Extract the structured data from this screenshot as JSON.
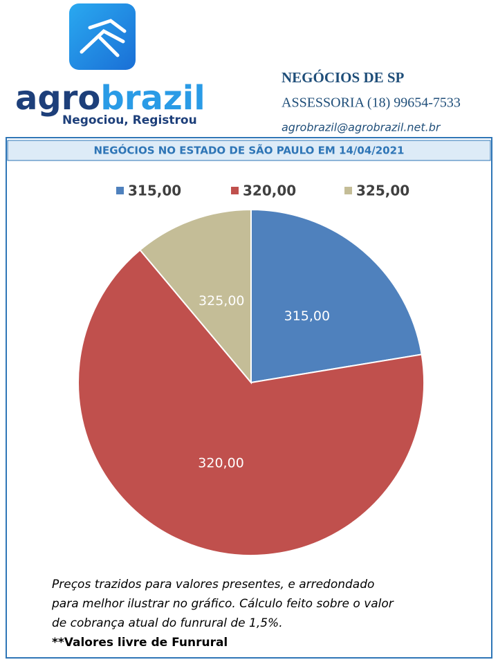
{
  "header": {
    "brand": [
      "agro",
      "brazil"
    ],
    "slogan": "Negociou, Registrou",
    "company": "NEGÓCIOS DE SP",
    "phone": "ASSESSORIA (18) 99654-7533",
    "email": "agrobrazil@agrobrazil.net.br"
  },
  "chart_data": {
    "type": "pie",
    "title": "NEGÓCIOS NO ESTADO DE SÃO PAULO EM 14/04/2021",
    "categories": [
      "315,00",
      "320,00",
      "325,00"
    ],
    "values": [
      22.4,
      66.5,
      11.1
    ],
    "colors": [
      "#4f81bd",
      "#c0504d",
      "#c4bd97"
    ],
    "legend": "top"
  },
  "notes": {
    "lines": [
      "Preços trazidos para valores presentes, e arredondado",
      "para melhor ilustrar no gráfico. Cálculo feito sobre o valor",
      "de cobrança atual do funrural de 1,5%."
    ],
    "bold": "**Valores livre de Funrural"
  }
}
